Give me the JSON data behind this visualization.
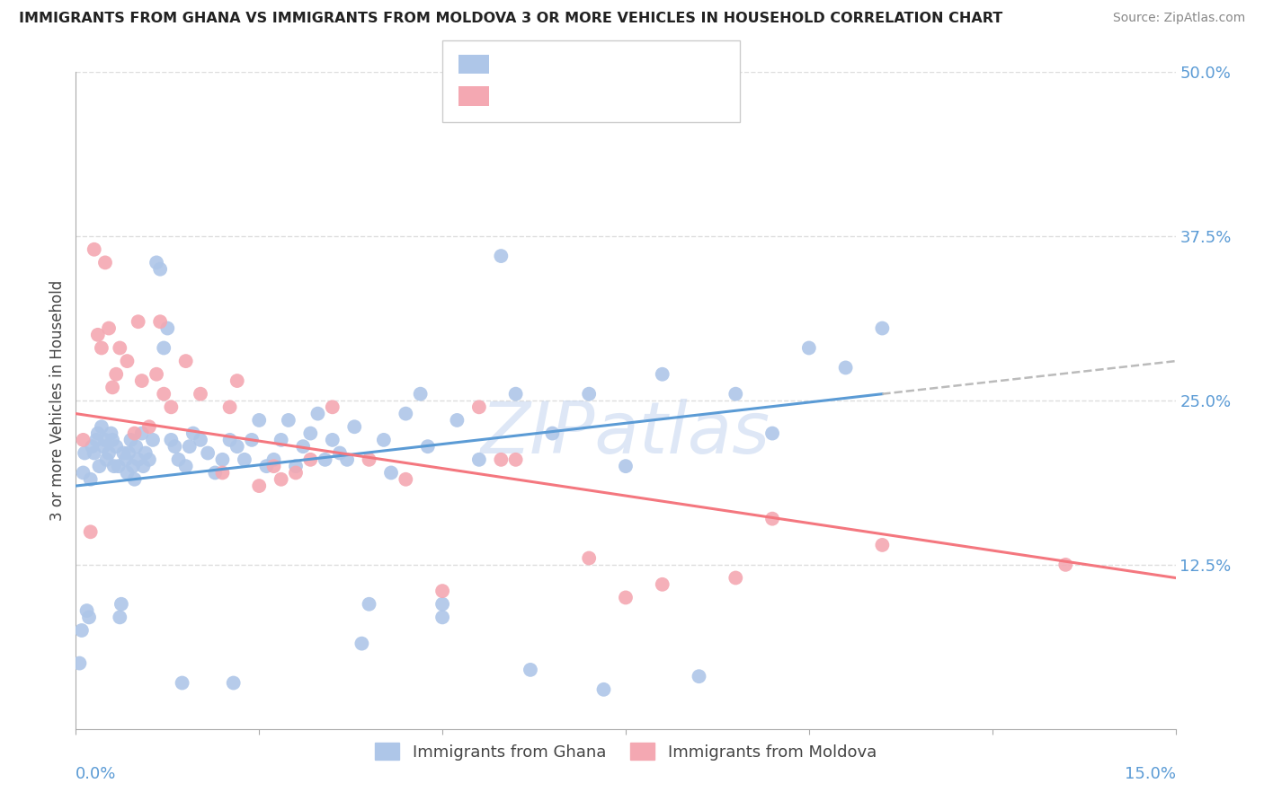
{
  "title": "IMMIGRANTS FROM GHANA VS IMMIGRANTS FROM MOLDOVA 3 OR MORE VEHICLES IN HOUSEHOLD CORRELATION CHART",
  "source": "Source: ZipAtlas.com",
  "ylabel": "3 or more Vehicles in Household",
  "xmin": 0.0,
  "xmax": 15.0,
  "ymin": 0.0,
  "ymax": 50.0,
  "ytick_vals": [
    12.5,
    25.0,
    37.5,
    50.0
  ],
  "xtick_vals": [
    0.0,
    2.5,
    5.0,
    7.5,
    10.0,
    12.5,
    15.0
  ],
  "ghana_dot_color": "#aec6e8",
  "moldova_dot_color": "#f4a8b2",
  "ghana_line_color": "#5b9bd5",
  "moldova_line_color": "#f4777f",
  "dash_color": "#bbbbbb",
  "ghana_x": [
    0.05,
    0.08,
    0.1,
    0.12,
    0.15,
    0.18,
    0.2,
    0.22,
    0.25,
    0.28,
    0.3,
    0.32,
    0.35,
    0.38,
    0.4,
    0.42,
    0.45,
    0.48,
    0.5,
    0.52,
    0.55,
    0.58,
    0.6,
    0.62,
    0.65,
    0.68,
    0.7,
    0.72,
    0.75,
    0.78,
    0.8,
    0.82,
    0.85,
    0.9,
    0.92,
    0.95,
    1.0,
    1.05,
    1.1,
    1.15,
    1.2,
    1.25,
    1.3,
    1.35,
    1.4,
    1.5,
    1.55,
    1.6,
    1.7,
    1.8,
    1.9,
    2.0,
    2.1,
    2.2,
    2.3,
    2.4,
    2.5,
    2.6,
    2.7,
    2.8,
    3.0,
    3.1,
    3.2,
    3.3,
    3.4,
    3.5,
    3.6,
    3.8,
    4.0,
    4.2,
    4.5,
    4.7,
    5.0,
    5.2,
    5.5,
    5.8,
    6.0,
    6.5,
    7.0,
    7.5,
    8.0,
    9.0,
    9.5,
    10.0,
    10.5,
    11.0,
    2.9,
    3.7,
    4.3,
    5.0,
    6.2,
    7.2,
    8.5,
    4.8,
    3.9,
    2.15,
    1.45
  ],
  "ghana_y": [
    5.0,
    7.5,
    19.5,
    21.0,
    9.0,
    8.5,
    19.0,
    21.5,
    21.0,
    22.0,
    22.5,
    20.0,
    23.0,
    21.5,
    22.0,
    20.5,
    21.0,
    22.5,
    22.0,
    20.0,
    21.5,
    20.0,
    8.5,
    9.5,
    21.0,
    20.5,
    19.5,
    21.0,
    22.0,
    20.0,
    19.0,
    21.5,
    20.5,
    22.5,
    20.0,
    21.0,
    20.5,
    22.0,
    35.5,
    35.0,
    29.0,
    30.5,
    22.0,
    21.5,
    20.5,
    20.0,
    21.5,
    22.5,
    22.0,
    21.0,
    19.5,
    20.5,
    22.0,
    21.5,
    20.5,
    22.0,
    23.5,
    20.0,
    20.5,
    22.0,
    20.0,
    21.5,
    22.5,
    24.0,
    20.5,
    22.0,
    21.0,
    23.0,
    9.5,
    22.0,
    24.0,
    25.5,
    9.5,
    23.5,
    20.5,
    36.0,
    25.5,
    22.5,
    25.5,
    20.0,
    27.0,
    25.5,
    22.5,
    29.0,
    27.5,
    30.5,
    23.5,
    20.5,
    19.5,
    8.5,
    4.5,
    3.0,
    4.0,
    21.5,
    6.5,
    3.5,
    3.5
  ],
  "moldova_x": [
    0.1,
    0.2,
    0.25,
    0.3,
    0.35,
    0.4,
    0.45,
    0.5,
    0.55,
    0.6,
    0.7,
    0.8,
    0.85,
    0.9,
    1.0,
    1.1,
    1.15,
    1.2,
    1.3,
    1.5,
    1.7,
    2.0,
    2.1,
    2.2,
    2.5,
    2.7,
    2.8,
    3.0,
    3.2,
    3.5,
    4.0,
    4.5,
    5.0,
    5.5,
    5.8,
    6.0,
    7.0,
    7.5,
    8.0,
    9.0,
    9.5,
    11.0,
    13.5
  ],
  "moldova_y": [
    22.0,
    15.0,
    36.5,
    30.0,
    29.0,
    35.5,
    30.5,
    26.0,
    27.0,
    29.0,
    28.0,
    22.5,
    31.0,
    26.5,
    23.0,
    27.0,
    31.0,
    25.5,
    24.5,
    28.0,
    25.5,
    19.5,
    24.5,
    26.5,
    18.5,
    20.0,
    19.0,
    19.5,
    20.5,
    24.5,
    20.5,
    19.0,
    10.5,
    24.5,
    20.5,
    20.5,
    13.0,
    10.0,
    11.0,
    11.5,
    16.0,
    14.0,
    12.5
  ],
  "ghana_trend_x0": 0.0,
  "ghana_trend_y0": 18.5,
  "ghana_trend_x1": 11.0,
  "ghana_trend_y1": 25.5,
  "ghana_trend_x2": 15.0,
  "ghana_trend_y2": 28.0,
  "moldova_trend_x0": 0.0,
  "moldova_trend_y0": 24.0,
  "moldova_trend_x1": 15.0,
  "moldova_trend_y1": 11.5,
  "background_color": "#ffffff",
  "grid_color": "#dddddd",
  "axis_color": "#aaaaaa",
  "label_color_blue": "#5b9bd5",
  "label_color_dark": "#444444",
  "watermark": "ZIPatlas",
  "watermark_color": "#c8d8f0"
}
